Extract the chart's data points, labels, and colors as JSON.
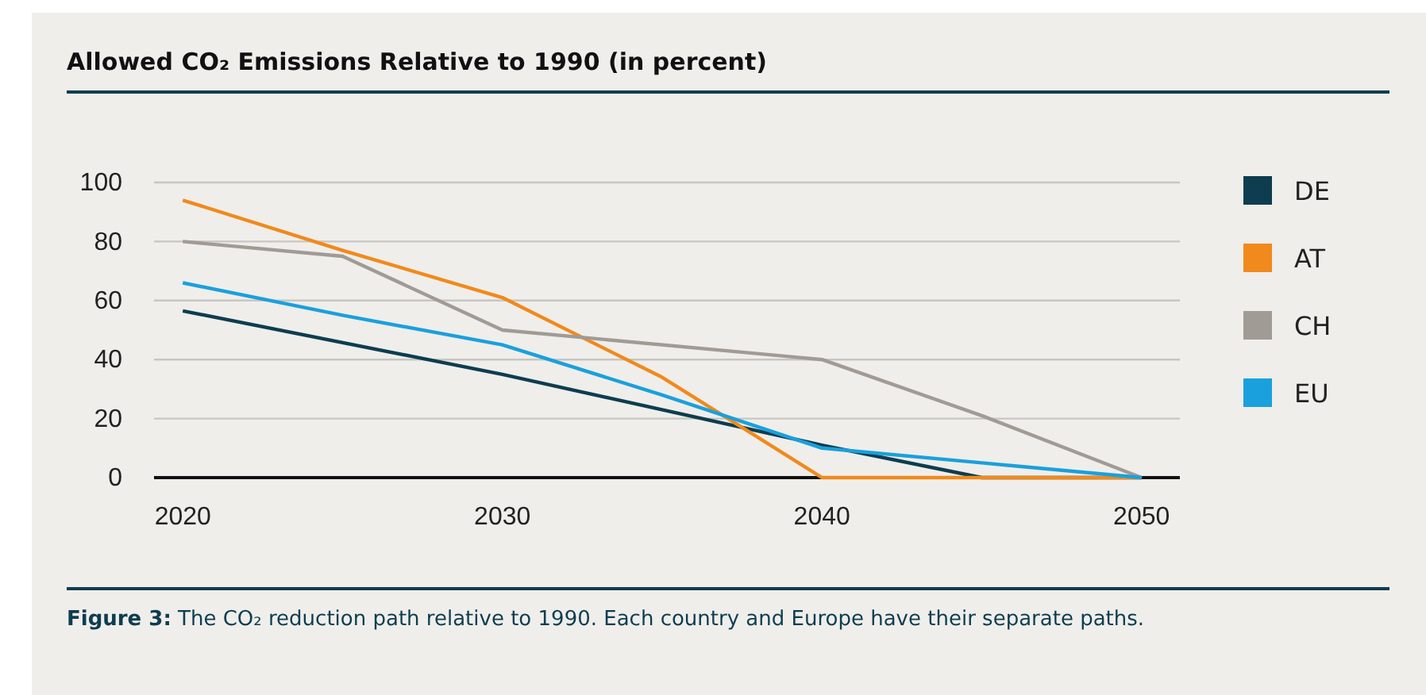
{
  "chart_data": {
    "type": "line",
    "title": "Allowed CO₂ Emissions Relative to 1990 (in percent)",
    "annotations": [
      "Figure 3: The CO₂ reduction path relative to 1990. Each country and Europe have their separate paths."
    ],
    "xlim": [
      2019.1,
      2051.2
    ],
    "xticks": [
      2020,
      2030,
      2040,
      2050
    ],
    "ylim": [
      0,
      100
    ],
    "yticks": [
      0,
      20,
      40,
      60,
      80,
      100
    ],
    "grid": "y",
    "legend": "right",
    "marker": "none",
    "line_style": "solid",
    "series": [
      {
        "name": "DE",
        "color": "#0d3d4f",
        "x": [
          2020,
          2030,
          2040,
          2045,
          2050
        ],
        "values": [
          56.5,
          35,
          11,
          0,
          0
        ]
      },
      {
        "name": "AT",
        "color": "#f08a1c",
        "x": [
          2020,
          2025,
          2030,
          2035,
          2040,
          2050
        ],
        "values": [
          94,
          77,
          61,
          34,
          0,
          0
        ]
      },
      {
        "name": "CH",
        "color": "#a09b94",
        "x": [
          2020,
          2025,
          2030,
          2040,
          2045,
          2050
        ],
        "values": [
          80,
          75,
          50,
          40,
          21,
          0
        ]
      },
      {
        "name": "EU",
        "color": "#1aa0dc",
        "x": [
          2020,
          2025,
          2030,
          2035,
          2040,
          2045,
          2050
        ],
        "values": [
          66,
          55,
          45,
          28,
          10,
          5,
          0
        ]
      }
    ]
  }
}
